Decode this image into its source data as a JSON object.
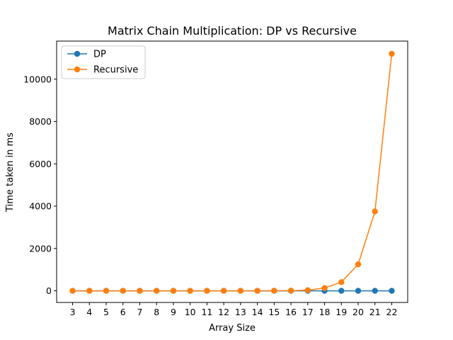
{
  "chart_data": {
    "type": "line",
    "title": "Matrix Chain Multiplication: DP vs Recursive",
    "xlabel": "Array Size",
    "ylabel": "Time taken in ms",
    "x": [
      3,
      4,
      5,
      6,
      7,
      8,
      9,
      10,
      11,
      12,
      13,
      14,
      15,
      16,
      17,
      18,
      19,
      20,
      21,
      22
    ],
    "xticks": [
      "3",
      "4",
      "5",
      "6",
      "7",
      "8",
      "9",
      "10",
      "11",
      "12",
      "13",
      "14",
      "15",
      "16",
      "17",
      "18",
      "19",
      "20",
      "21",
      "22"
    ],
    "yticks": [
      0,
      2000,
      4000,
      6000,
      8000,
      10000
    ],
    "ylim": [
      -550,
      11800
    ],
    "grid": false,
    "legend_position": "top-left",
    "series": [
      {
        "name": "DP",
        "color": "#1f77b4",
        "marker": "circle",
        "values": [
          0,
          0,
          0,
          0,
          0,
          0,
          0,
          0,
          0,
          0,
          0,
          0,
          0,
          0,
          0,
          0,
          0,
          0,
          0,
          0
        ]
      },
      {
        "name": "Recursive",
        "color": "#ff7f0e",
        "marker": "circle",
        "values": [
          0,
          0,
          0,
          0,
          0,
          0,
          0,
          0,
          0,
          0,
          0,
          1,
          3,
          8,
          30,
          130,
          410,
          1250,
          3750,
          11200
        ]
      }
    ]
  }
}
